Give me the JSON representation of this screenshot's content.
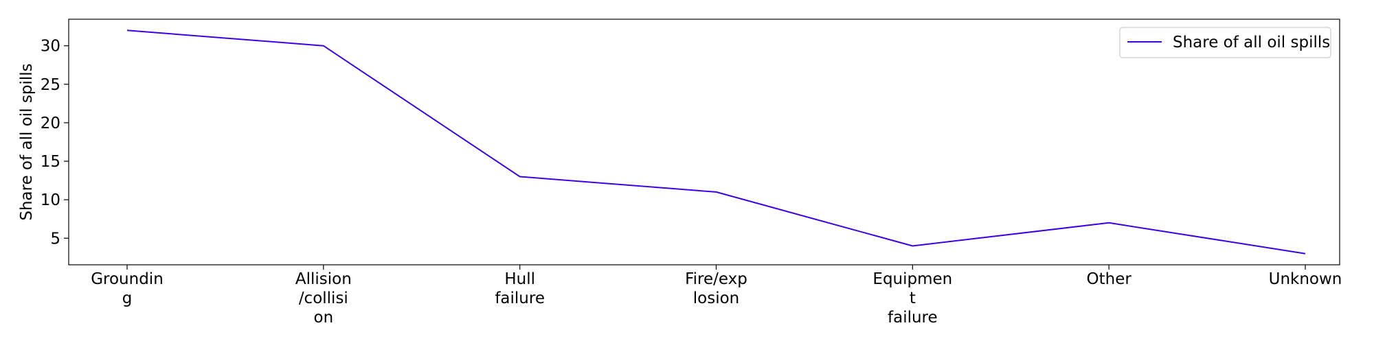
{
  "chart_data": {
    "type": "line",
    "categories": [
      [
        "Groundin",
        "g"
      ],
      [
        "Allision",
        "/collisi",
        "on"
      ],
      [
        "Hull",
        "failure"
      ],
      [
        "Fire/exp",
        "losion"
      ],
      [
        "Equipmen",
        "t",
        "failure"
      ],
      [
        "Other"
      ],
      [
        "Unknown"
      ]
    ],
    "series": [
      {
        "name": "Share of all oil spills",
        "values": [
          32,
          30,
          13,
          11,
          4,
          7,
          3
        ],
        "color": "#3b00e6"
      }
    ],
    "ylabel": "Share of all oil spills",
    "xlabel": "",
    "yticks": [
      5,
      10,
      15,
      20,
      25,
      30
    ],
    "ylim": [
      1.55,
      33.45
    ],
    "grid": false,
    "legend_position": "top-right"
  }
}
